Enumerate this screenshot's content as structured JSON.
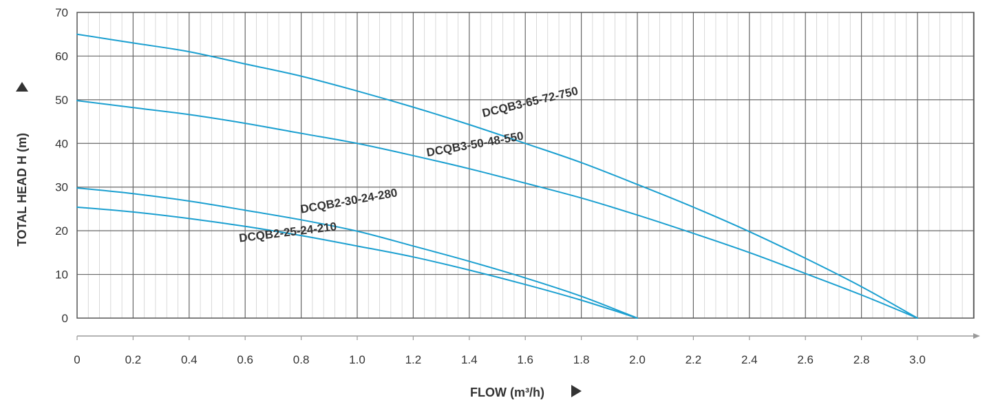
{
  "chart_data": {
    "type": "line",
    "xlabel": "FLOW (m³/h)",
    "ylabel": "TOTAL HEAD H (m)",
    "xlim": [
      0,
      3.2
    ],
    "ylim": [
      0,
      70
    ],
    "x_ticks": [
      "0",
      "0.2",
      "0.4",
      "0.6",
      "0.8",
      "1.0",
      "1.2",
      "1.4",
      "1.6",
      "1.8",
      "2.0",
      "2.2",
      "2.4",
      "2.6",
      "2.8",
      "3.0"
    ],
    "x_tick_values": [
      0,
      0.2,
      0.4,
      0.6,
      0.8,
      1.0,
      1.2,
      1.4,
      1.6,
      1.8,
      2.0,
      2.2,
      2.4,
      2.6,
      2.8,
      3.0
    ],
    "y_ticks": [
      "0",
      "10",
      "20",
      "30",
      "40",
      "50",
      "60",
      "70"
    ],
    "y_tick_values": [
      0,
      10,
      20,
      30,
      40,
      50,
      60,
      70
    ],
    "grid": true,
    "line_color": "#1a9fd0",
    "series": [
      {
        "name": "DCQB3-65-72-750",
        "x": [
          0,
          0.2,
          0.4,
          0.6,
          0.8,
          1.0,
          1.2,
          1.4,
          1.6,
          1.8,
          2.0,
          2.2,
          2.4,
          2.6,
          2.8,
          3.0
        ],
        "values": [
          65,
          63,
          61,
          58.2,
          55.4,
          52,
          48.3,
          44.3,
          40,
          35.6,
          30.6,
          25.4,
          19.8,
          13.7,
          7.2,
          0
        ]
      },
      {
        "name": "DCQB3-50-48-550",
        "x": [
          0,
          0.2,
          0.4,
          0.6,
          0.8,
          1.0,
          1.2,
          1.4,
          1.6,
          1.8,
          2.0,
          2.2,
          2.4,
          2.6,
          2.8,
          3.0
        ],
        "values": [
          49.8,
          48.2,
          46.6,
          44.6,
          42.3,
          40,
          37.2,
          34.2,
          30.9,
          27.5,
          23.6,
          19.4,
          15,
          10.2,
          5.3,
          0
        ]
      },
      {
        "name": "DCQB2-30-24-280",
        "x": [
          0,
          0.2,
          0.4,
          0.6,
          0.8,
          1.0,
          1.2,
          1.4,
          1.6,
          1.8,
          2.0
        ],
        "values": [
          29.8,
          28.5,
          26.8,
          24.7,
          22.5,
          19.9,
          16.5,
          13,
          9.2,
          5,
          0
        ]
      },
      {
        "name": "DCQB2-25-24-210",
        "x": [
          0,
          0.2,
          0.4,
          0.6,
          0.8,
          1.0,
          1.2,
          1.4,
          1.6,
          1.8,
          2.0
        ],
        "values": [
          25.4,
          24.3,
          22.8,
          21,
          18.9,
          16.5,
          14,
          11,
          7.7,
          4.1,
          0
        ]
      }
    ],
    "labels": [
      {
        "text": "DCQB3-65-72-750",
        "series": "DCQB3-65-72-750",
        "at_x": 1.45,
        "at_y": 46,
        "angle": -13.5
      },
      {
        "text": "DCQB3-50-48-550",
        "series": "DCQB3-50-48-550",
        "at_x": 1.25,
        "at_y": 37,
        "angle": -10
      },
      {
        "text": "DCQB2-30-24-280",
        "series": "DCQB2-30-24-280",
        "at_x": 0.8,
        "at_y": 24,
        "angle": -10
      },
      {
        "text": "DCQB2-25-24-210",
        "series": "DCQB2-25-24-210",
        "at_x": 0.58,
        "at_y": 17.4,
        "angle": -7
      }
    ]
  }
}
